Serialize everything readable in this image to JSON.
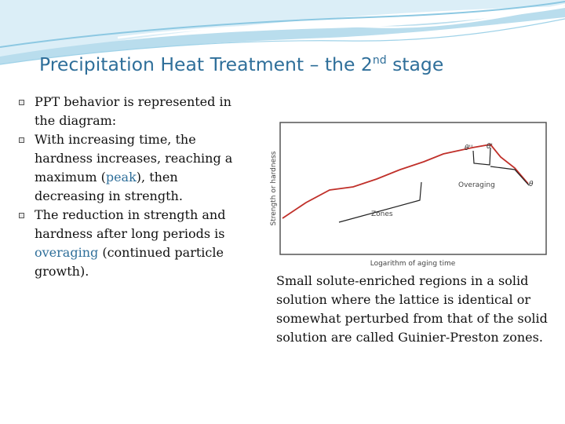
{
  "slide": {
    "title_main": "Precipitation Heat Treatment – the 2",
    "title_sup": "nd",
    "title_end": " stage",
    "bullets": [
      {
        "text": "PPT behavior is represented in the diagram:"
      },
      {
        "text_before": "With increasing time, the hardness increases, reaching a maximum (",
        "highlight": "peak",
        "text_after": "), then decreasing in strength."
      },
      {
        "text_before": "The reduction in strength and hardness after long periods is ",
        "highlight": "overaging",
        "text_after": " (continued particle growth)."
      }
    ],
    "caption": "Small solute-enriched regions in a solid solution where the lattice is identical or somewhat perturbed from that of the solid solution are called Guinier-Preston zones."
  },
  "diagram": {
    "y_axis_label": "Strength or hardness",
    "x_axis_label": "Logarithm of aging time",
    "annotations": {
      "peak_left": "θ''",
      "peak_right": "θ'",
      "end_label": "θ",
      "overaging": "Overaging",
      "zones": "Zones"
    },
    "colors": {
      "curve": "#c0302a",
      "frame": "#555555",
      "pointer": "#222222",
      "accent": "#2f6f9a"
    }
  }
}
